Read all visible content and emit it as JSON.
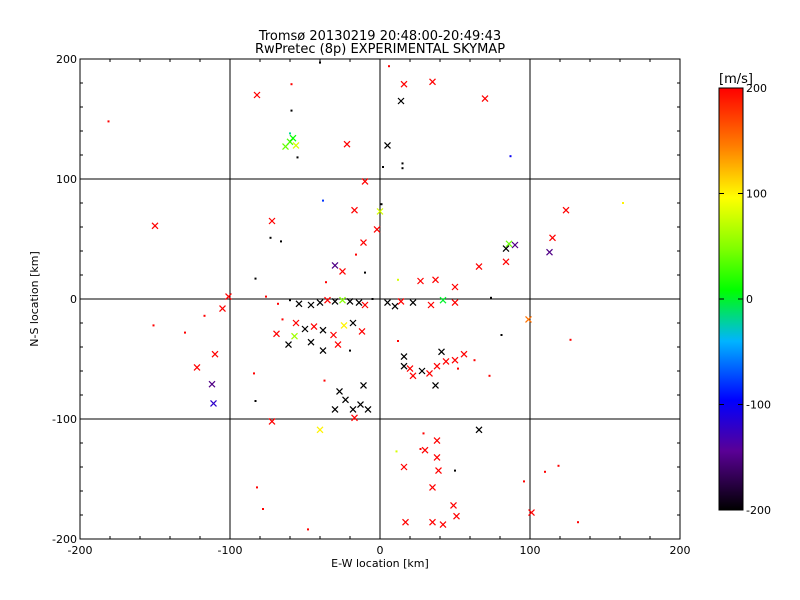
{
  "chart_data": {
    "type": "scatter",
    "title": "Tromsø 20130219 20:48:00-20:49:43",
    "subtitle": "RwPretec (8p) EXPERIMENTAL SKYMAP",
    "xlabel": "E-W location [km]",
    "ylabel": "N-S location [km]",
    "xlim": [
      -200,
      200
    ],
    "ylim": [
      -200,
      200
    ],
    "x_ticks": [
      "-200",
      "-100",
      "0",
      "100",
      "200"
    ],
    "y_ticks": [
      "-200",
      "-100",
      "0",
      "100",
      "200"
    ],
    "grid": true,
    "colorbar": {
      "label": "[m/s]",
      "range": [
        -200,
        200
      ],
      "ticks": [
        "-200",
        "-100",
        "0",
        "100",
        "200"
      ],
      "colormap": "rainbow-black-to-red"
    },
    "marker_types": [
      "cross",
      "dot"
    ],
    "points": [
      {
        "x": -181,
        "y": 148,
        "v": 200,
        "m": "dot"
      },
      {
        "x": -82,
        "y": 170,
        "v": 200,
        "m": "cross"
      },
      {
        "x": -59,
        "y": 179,
        "v": 200,
        "m": "dot"
      },
      {
        "x": -59,
        "y": 157,
        "v": -200,
        "m": "dot"
      },
      {
        "x": -40,
        "y": 197,
        "v": -200,
        "m": "dot"
      },
      {
        "x": 6,
        "y": 194,
        "v": 200,
        "m": "dot"
      },
      {
        "x": 16,
        "y": 179,
        "v": 200,
        "m": "cross"
      },
      {
        "x": 35,
        "y": 181,
        "v": 200,
        "m": "cross"
      },
      {
        "x": 14,
        "y": 165,
        "v": -200,
        "m": "cross"
      },
      {
        "x": 70,
        "y": 167,
        "v": 200,
        "m": "cross"
      },
      {
        "x": -22,
        "y": 129,
        "v": 200,
        "m": "cross"
      },
      {
        "x": 5,
        "y": 128,
        "v": -200,
        "m": "cross"
      },
      {
        "x": -63,
        "y": 127,
        "v": 40,
        "m": "cross"
      },
      {
        "x": -60,
        "y": 131,
        "v": 30,
        "m": "cross"
      },
      {
        "x": -58,
        "y": 134,
        "v": 10,
        "m": "cross"
      },
      {
        "x": -56,
        "y": 128,
        "v": 80,
        "m": "cross"
      },
      {
        "x": -60,
        "y": 138,
        "v": -20,
        "m": "dot"
      },
      {
        "x": -55,
        "y": 118,
        "v": -200,
        "m": "dot"
      },
      {
        "x": 2,
        "y": 110,
        "v": -200,
        "m": "dot"
      },
      {
        "x": 15,
        "y": 113,
        "v": -200,
        "m": "dot"
      },
      {
        "x": 15,
        "y": 109,
        "v": -200,
        "m": "dot"
      },
      {
        "x": 87,
        "y": 119,
        "v": -100,
        "m": "dot"
      },
      {
        "x": -150,
        "y": 61,
        "v": 200,
        "m": "cross"
      },
      {
        "x": -10,
        "y": 98,
        "v": 200,
        "m": "cross"
      },
      {
        "x": -38,
        "y": 82,
        "v": -80,
        "m": "dot"
      },
      {
        "x": -17,
        "y": 74,
        "v": 200,
        "m": "cross"
      },
      {
        "x": 0,
        "y": 73,
        "v": 80,
        "m": "cross"
      },
      {
        "x": 1,
        "y": 79,
        "v": -200,
        "m": "dot"
      },
      {
        "x": 124,
        "y": 74,
        "v": 200,
        "m": "cross"
      },
      {
        "x": 162,
        "y": 80,
        "v": 100,
        "m": "dot"
      },
      {
        "x": -72,
        "y": 65,
        "v": 200,
        "m": "cross"
      },
      {
        "x": -2,
        "y": 58,
        "v": 200,
        "m": "cross"
      },
      {
        "x": 115,
        "y": 51,
        "v": 200,
        "m": "cross"
      },
      {
        "x": -73,
        "y": 51,
        "v": -200,
        "m": "dot"
      },
      {
        "x": -66,
        "y": 48,
        "v": -200,
        "m": "dot"
      },
      {
        "x": -11,
        "y": 47,
        "v": 200,
        "m": "cross"
      },
      {
        "x": 86,
        "y": 46,
        "v": 40,
        "m": "cross"
      },
      {
        "x": 90,
        "y": 45,
        "v": -150,
        "m": "cross"
      },
      {
        "x": 84,
        "y": 42,
        "v": -200,
        "m": "cross"
      },
      {
        "x": 113,
        "y": 39,
        "v": -150,
        "m": "cross"
      },
      {
        "x": -16,
        "y": 37,
        "v": 200,
        "m": "dot"
      },
      {
        "x": 84,
        "y": 31,
        "v": 200,
        "m": "cross"
      },
      {
        "x": 66,
        "y": 27,
        "v": 200,
        "m": "cross"
      },
      {
        "x": -30,
        "y": 28,
        "v": -150,
        "m": "cross"
      },
      {
        "x": -25,
        "y": 23,
        "v": 200,
        "m": "cross"
      },
      {
        "x": -36,
        "y": 14,
        "v": 200,
        "m": "dot"
      },
      {
        "x": -10,
        "y": 22,
        "v": -200,
        "m": "dot"
      },
      {
        "x": 12,
        "y": 16,
        "v": 80,
        "m": "dot"
      },
      {
        "x": 27,
        "y": 15,
        "v": 200,
        "m": "cross"
      },
      {
        "x": 37,
        "y": 16,
        "v": 200,
        "m": "cross"
      },
      {
        "x": 50,
        "y": 10,
        "v": 200,
        "m": "cross"
      },
      {
        "x": -83,
        "y": 17,
        "v": -200,
        "m": "dot"
      },
      {
        "x": -101,
        "y": 2,
        "v": 200,
        "m": "cross"
      },
      {
        "x": -76,
        "y": 2,
        "v": 200,
        "m": "dot"
      },
      {
        "x": -105,
        "y": -8,
        "v": 200,
        "m": "cross"
      },
      {
        "x": -68,
        "y": -4,
        "v": 200,
        "m": "dot"
      },
      {
        "x": -60,
        "y": -1,
        "v": -200,
        "m": "dot"
      },
      {
        "x": -54,
        "y": -4,
        "v": -200,
        "m": "cross"
      },
      {
        "x": -46,
        "y": -5,
        "v": -200,
        "m": "cross"
      },
      {
        "x": -40,
        "y": -3,
        "v": -200,
        "m": "cross"
      },
      {
        "x": -35,
        "y": -1,
        "v": 200,
        "m": "cross"
      },
      {
        "x": -30,
        "y": -2,
        "v": -200,
        "m": "cross"
      },
      {
        "x": -25,
        "y": -1,
        "v": 50,
        "m": "cross"
      },
      {
        "x": -20,
        "y": -2,
        "v": -200,
        "m": "cross"
      },
      {
        "x": -14,
        "y": -3,
        "v": -200,
        "m": "cross"
      },
      {
        "x": -10,
        "y": -5,
        "v": 200,
        "m": "cross"
      },
      {
        "x": -5,
        "y": 0,
        "v": -200,
        "m": "dot"
      },
      {
        "x": 5,
        "y": -3,
        "v": -200,
        "m": "cross"
      },
      {
        "x": 10,
        "y": -6,
        "v": -200,
        "m": "cross"
      },
      {
        "x": 14,
        "y": -2,
        "v": 200,
        "m": "cross"
      },
      {
        "x": 22,
        "y": -3,
        "v": -200,
        "m": "cross"
      },
      {
        "x": 34,
        "y": -5,
        "v": 200,
        "m": "cross"
      },
      {
        "x": 42,
        "y": -1,
        "v": 0,
        "m": "cross"
      },
      {
        "x": 50,
        "y": -3,
        "v": 200,
        "m": "cross"
      },
      {
        "x": 74,
        "y": 1,
        "v": -200,
        "m": "dot"
      },
      {
        "x": 99,
        "y": -17,
        "v": 150,
        "m": "cross"
      },
      {
        "x": -151,
        "y": -22,
        "v": 200,
        "m": "dot"
      },
      {
        "x": -130,
        "y": -28,
        "v": 200,
        "m": "dot"
      },
      {
        "x": -117,
        "y": -14,
        "v": 200,
        "m": "dot"
      },
      {
        "x": -65,
        "y": -17,
        "v": 200,
        "m": "dot"
      },
      {
        "x": -56,
        "y": -20,
        "v": 200,
        "m": "cross"
      },
      {
        "x": -50,
        "y": -25,
        "v": -200,
        "m": "cross"
      },
      {
        "x": -44,
        "y": -23,
        "v": 200,
        "m": "cross"
      },
      {
        "x": -38,
        "y": -26,
        "v": -200,
        "m": "cross"
      },
      {
        "x": -31,
        "y": -30,
        "v": 200,
        "m": "cross"
      },
      {
        "x": -24,
        "y": -22,
        "v": 100,
        "m": "cross"
      },
      {
        "x": -18,
        "y": -20,
        "v": -200,
        "m": "cross"
      },
      {
        "x": -12,
        "y": -27,
        "v": 200,
        "m": "cross"
      },
      {
        "x": -69,
        "y": -29,
        "v": 200,
        "m": "cross"
      },
      {
        "x": -61,
        "y": -38,
        "v": -200,
        "m": "cross"
      },
      {
        "x": -57,
        "y": -31,
        "v": 60,
        "m": "cross"
      },
      {
        "x": -46,
        "y": -36,
        "v": -200,
        "m": "cross"
      },
      {
        "x": -38,
        "y": -43,
        "v": -200,
        "m": "cross"
      },
      {
        "x": -28,
        "y": -38,
        "v": 200,
        "m": "cross"
      },
      {
        "x": -20,
        "y": -43,
        "v": -200,
        "m": "dot"
      },
      {
        "x": -110,
        "y": -46,
        "v": 200,
        "m": "cross"
      },
      {
        "x": -122,
        "y": -57,
        "v": 200,
        "m": "cross"
      },
      {
        "x": -112,
        "y": -71,
        "v": -150,
        "m": "cross"
      },
      {
        "x": -111,
        "y": -87,
        "v": -120,
        "m": "cross"
      },
      {
        "x": -84,
        "y": -62,
        "v": 200,
        "m": "dot"
      },
      {
        "x": -83,
        "y": -85,
        "v": -200,
        "m": "dot"
      },
      {
        "x": -72,
        "y": -102,
        "v": 200,
        "m": "cross"
      },
      {
        "x": -37,
        "y": -68,
        "v": 200,
        "m": "dot"
      },
      {
        "x": -27,
        "y": -77,
        "v": -200,
        "m": "cross"
      },
      {
        "x": -23,
        "y": -84,
        "v": -200,
        "m": "cross"
      },
      {
        "x": -30,
        "y": -92,
        "v": -200,
        "m": "cross"
      },
      {
        "x": -18,
        "y": -92,
        "v": -200,
        "m": "cross"
      },
      {
        "x": -13,
        "y": -88,
        "v": -200,
        "m": "cross"
      },
      {
        "x": -11,
        "y": -72,
        "v": -200,
        "m": "cross"
      },
      {
        "x": -8,
        "y": -92,
        "v": -200,
        "m": "cross"
      },
      {
        "x": -17,
        "y": -99,
        "v": 200,
        "m": "cross"
      },
      {
        "x": -40,
        "y": -109,
        "v": 100,
        "m": "cross"
      },
      {
        "x": 12,
        "y": -35,
        "v": 200,
        "m": "dot"
      },
      {
        "x": 16,
        "y": -48,
        "v": -200,
        "m": "cross"
      },
      {
        "x": 16,
        "y": -56,
        "v": -200,
        "m": "cross"
      },
      {
        "x": 20,
        "y": -58,
        "v": 200,
        "m": "cross"
      },
      {
        "x": 22,
        "y": -64,
        "v": 200,
        "m": "cross"
      },
      {
        "x": 28,
        "y": -60,
        "v": -200,
        "m": "cross"
      },
      {
        "x": 33,
        "y": -62,
        "v": 200,
        "m": "cross"
      },
      {
        "x": 38,
        "y": -56,
        "v": 200,
        "m": "cross"
      },
      {
        "x": 41,
        "y": -44,
        "v": -200,
        "m": "cross"
      },
      {
        "x": 44,
        "y": -52,
        "v": 200,
        "m": "cross"
      },
      {
        "x": 50,
        "y": -51,
        "v": 200,
        "m": "cross"
      },
      {
        "x": 56,
        "y": -46,
        "v": 200,
        "m": "cross"
      },
      {
        "x": 63,
        "y": -51,
        "v": 200,
        "m": "dot"
      },
      {
        "x": 52,
        "y": -58,
        "v": 200,
        "m": "dot"
      },
      {
        "x": 37,
        "y": -72,
        "v": -200,
        "m": "cross"
      },
      {
        "x": 73,
        "y": -64,
        "v": 200,
        "m": "dot"
      },
      {
        "x": 66,
        "y": -109,
        "v": -200,
        "m": "cross"
      },
      {
        "x": 29,
        "y": -112,
        "v": 200,
        "m": "dot"
      },
      {
        "x": 27,
        "y": -125,
        "v": 200,
        "m": "dot"
      },
      {
        "x": 38,
        "y": -118,
        "v": 200,
        "m": "cross"
      },
      {
        "x": 30,
        "y": -126,
        "v": 200,
        "m": "cross"
      },
      {
        "x": 38,
        "y": -132,
        "v": 200,
        "m": "cross"
      },
      {
        "x": 16,
        "y": -140,
        "v": 200,
        "m": "cross"
      },
      {
        "x": 39,
        "y": -143,
        "v": 200,
        "m": "cross"
      },
      {
        "x": 35,
        "y": -157,
        "v": 200,
        "m": "cross"
      },
      {
        "x": 50,
        "y": -143,
        "v": -200,
        "m": "dot"
      },
      {
        "x": 49,
        "y": -172,
        "v": 200,
        "m": "cross"
      },
      {
        "x": 51,
        "y": -181,
        "v": 200,
        "m": "cross"
      },
      {
        "x": 35,
        "y": -186,
        "v": 200,
        "m": "cross"
      },
      {
        "x": 42,
        "y": -188,
        "v": 200,
        "m": "cross"
      },
      {
        "x": 17,
        "y": -186,
        "v": 200,
        "m": "cross"
      },
      {
        "x": 11,
        "y": -127,
        "v": 80,
        "m": "dot"
      },
      {
        "x": -82,
        "y": -157,
        "v": 200,
        "m": "dot"
      },
      {
        "x": -78,
        "y": -175,
        "v": 200,
        "m": "dot"
      },
      {
        "x": -48,
        "y": -192,
        "v": 200,
        "m": "dot"
      },
      {
        "x": 96,
        "y": -152,
        "v": 200,
        "m": "dot"
      },
      {
        "x": 101,
        "y": -178,
        "v": 200,
        "m": "cross"
      },
      {
        "x": 110,
        "y": -144,
        "v": 200,
        "m": "dot"
      },
      {
        "x": 119,
        "y": -139,
        "v": 200,
        "m": "dot"
      },
      {
        "x": 132,
        "y": -186,
        "v": 200,
        "m": "dot"
      },
      {
        "x": 127,
        "y": -34,
        "v": 200,
        "m": "dot"
      },
      {
        "x": 81,
        "y": -30,
        "v": -200,
        "m": "dot"
      }
    ]
  }
}
